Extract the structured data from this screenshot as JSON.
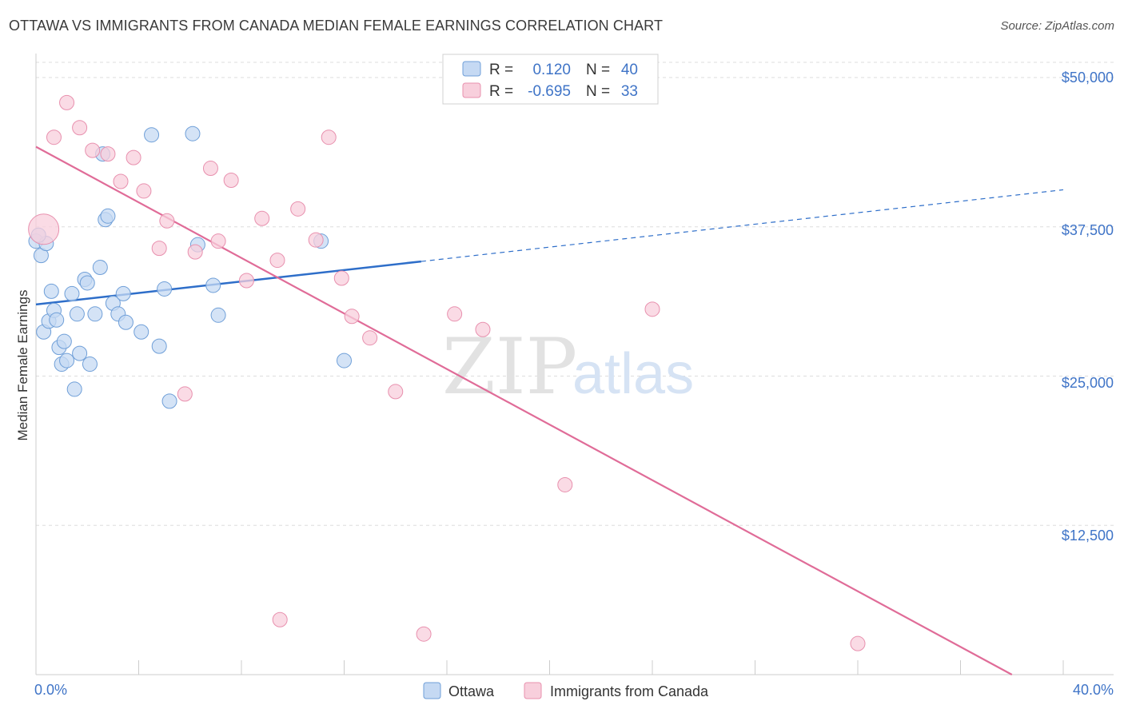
{
  "header": {
    "title": "OTTAWA VS IMMIGRANTS FROM CANADA MEDIAN FEMALE EARNINGS CORRELATION CHART",
    "source": "Source: ZipAtlas.com"
  },
  "watermark": {
    "zip": "ZIP",
    "atlas": "atlas"
  },
  "colors": {
    "ottawa_fill": "#c5d9f3",
    "ottawa_stroke": "#6f9fd8",
    "ottawa_line": "#2e6ec9",
    "canada_fill": "#f8cfdc",
    "canada_stroke": "#e890ae",
    "canada_line": "#e06c98",
    "tick_text": "#3f74c7",
    "grid": "#dddddd"
  },
  "legend": {
    "rows": [
      {
        "r_label": "R =",
        "r_value": "0.120",
        "n_label": "N =",
        "n_value": "40"
      },
      {
        "r_label": "R =",
        "r_value": "-0.695",
        "n_label": "N =",
        "n_value": "33"
      }
    ]
  },
  "chart_data": {
    "type": "scatter",
    "title": "OTTAWA VS IMMIGRANTS FROM CANADA MEDIAN FEMALE EARNINGS CORRELATION CHART",
    "xlabel": "",
    "ylabel": "Median Female Earnings",
    "xlim": [
      0,
      40
    ],
    "ylim": [
      0,
      50000
    ],
    "x_tick_labels": [
      "0.0%",
      "40.0%"
    ],
    "y_ticks": [
      12500,
      25000,
      37500,
      50000
    ],
    "y_tick_labels": [
      "$12,500",
      "$25,000",
      "$37,500",
      "$50,000"
    ],
    "grid": true,
    "legend_position": "bottom-center",
    "series": [
      {
        "name": "Ottawa",
        "R": 0.12,
        "N": 40,
        "points": [
          [
            0.0,
            36300
          ],
          [
            0.2,
            35100
          ],
          [
            0.4,
            36100
          ],
          [
            0.3,
            28700
          ],
          [
            0.5,
            29600
          ],
          [
            0.6,
            32100
          ],
          [
            0.7,
            30500
          ],
          [
            0.8,
            29700
          ],
          [
            0.9,
            27400
          ],
          [
            1.0,
            26000
          ],
          [
            1.1,
            27900
          ],
          [
            1.2,
            26300
          ],
          [
            1.4,
            31900
          ],
          [
            1.5,
            23900
          ],
          [
            1.6,
            30200
          ],
          [
            1.7,
            26900
          ],
          [
            1.9,
            33100
          ],
          [
            2.0,
            32800
          ],
          [
            2.1,
            26000
          ],
          [
            2.3,
            30200
          ],
          [
            2.5,
            34100
          ],
          [
            2.6,
            43600
          ],
          [
            2.7,
            38100
          ],
          [
            2.8,
            38400
          ],
          [
            3.0,
            31100
          ],
          [
            3.2,
            30200
          ],
          [
            3.4,
            31900
          ],
          [
            3.5,
            29500
          ],
          [
            4.1,
            28700
          ],
          [
            4.5,
            45200
          ],
          [
            4.8,
            27500
          ],
          [
            5.0,
            32300
          ],
          [
            5.2,
            22900
          ],
          [
            6.1,
            45300
          ],
          [
            6.3,
            36000
          ],
          [
            6.9,
            32600
          ],
          [
            7.1,
            30100
          ],
          [
            11.1,
            36300
          ],
          [
            12.0,
            26300
          ],
          [
            0.1,
            36800
          ]
        ]
      },
      {
        "name": "Immigrants from Canada",
        "R": -0.695,
        "N": 33,
        "points": [
          [
            0.3,
            37300
          ],
          [
            0.7,
            45000
          ],
          [
            1.2,
            47900
          ],
          [
            1.7,
            45800
          ],
          [
            2.2,
            43900
          ],
          [
            2.8,
            43600
          ],
          [
            3.3,
            41300
          ],
          [
            3.8,
            43300
          ],
          [
            4.2,
            40500
          ],
          [
            4.8,
            35700
          ],
          [
            5.1,
            38000
          ],
          [
            5.8,
            23500
          ],
          [
            6.2,
            35400
          ],
          [
            6.8,
            42400
          ],
          [
            7.1,
            36300
          ],
          [
            7.6,
            41400
          ],
          [
            8.2,
            33000
          ],
          [
            8.8,
            38200
          ],
          [
            9.4,
            34700
          ],
          [
            9.5,
            4600
          ],
          [
            10.2,
            39000
          ],
          [
            10.9,
            36400
          ],
          [
            11.4,
            45000
          ],
          [
            11.9,
            33200
          ],
          [
            12.3,
            30000
          ],
          [
            13.0,
            28200
          ],
          [
            14.0,
            23700
          ],
          [
            15.1,
            3400
          ],
          [
            16.3,
            30200
          ],
          [
            17.4,
            28900
          ],
          [
            20.6,
            15900
          ],
          [
            24.0,
            30600
          ],
          [
            32.0,
            2600
          ]
        ]
      }
    ],
    "trend_lines": [
      {
        "series": "Ottawa",
        "solid_from": [
          0,
          31000
        ],
        "solid_to": [
          15,
          34600
        ],
        "dashed_to": [
          40,
          40600
        ]
      },
      {
        "series": "Immigrants from Canada",
        "from": [
          0,
          44200
        ],
        "to": [
          38,
          0
        ]
      }
    ]
  }
}
